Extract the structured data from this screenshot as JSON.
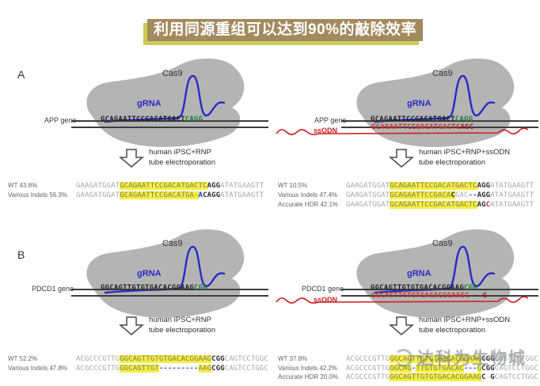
{
  "title": {
    "text": "利用同源重组可以达到90%的敲除效率",
    "bg_color": "#a3895e",
    "accent_color": "#c9cc55"
  },
  "watermark": {
    "text": "达科为生物城",
    "logo": "ring-logo-icon"
  },
  "colors": {
    "highlight_yellow": "#f4ee44",
    "grna_blue": "#2a2ac8",
    "pam_green": "#1e7d32",
    "ssodn_red": "#cc2020",
    "blob_gray": "#b4b4b4"
  },
  "panels": [
    {
      "section_label": "A",
      "cas9_label": "Cas9",
      "grna_label": "gRNA",
      "gene_label": "APP gene",
      "diagram_seq": [
        {
          "t": "GCAGAATTCCGACATGACT",
          "c": "k"
        },
        {
          "t": "CAGG",
          "c": "g"
        }
      ],
      "caption_line1": "human iPSC+RNP",
      "caption_line2": "tube electroporation",
      "results": [
        {
          "label": "WT 43.8%",
          "seq": [
            {
              "t": "GAAGATGGAT",
              "c": "p"
            },
            {
              "t": "GCAGAATTCCGACATGACTC",
              "c": "h"
            },
            {
              "t": "AGG",
              "c": "b"
            },
            {
              "t": "ATATGAAGTT",
              "c": "p"
            }
          ]
        },
        {
          "label": "Various Indels 56.3%",
          "seq": [
            {
              "t": "GAAGATGGAT",
              "c": "p"
            },
            {
              "t": "GCAGAATTCCGACATGA-",
              "c": "h"
            },
            {
              "t": "A",
              "c": "bb"
            },
            {
              "t": "CAGG",
              "c": "b"
            },
            {
              "t": "ATATGAAGTT",
              "c": "p"
            }
          ]
        }
      ]
    },
    {
      "section_label": "",
      "cas9_label": "Cas9",
      "grna_label": "gRNA",
      "gene_label": "APP gene",
      "diagram_seq": [
        {
          "t": "GCAGAATTCCGACATGACT",
          "c": "k"
        },
        {
          "t": "CAGG",
          "c": "g"
        }
      ],
      "ssodn": {
        "label": "ssODN",
        "seq": [
          {
            "t": "GCAGAATTCCGACATGACTC",
            "c": "r"
          },
          {
            "t": "AGC",
            "c": "rb"
          }
        ]
      },
      "caption_line1": "human iPSC+RNP+ssODN",
      "caption_line2": "tube electroporation",
      "results": [
        {
          "label": "WT 10.5%",
          "seq": [
            {
              "t": "GAAGATGGAT",
              "c": "p"
            },
            {
              "t": "GCAGAATTCCGACATGACTC",
              "c": "h"
            },
            {
              "t": "AGG",
              "c": "b"
            },
            {
              "t": "ATATGAAGTT",
              "c": "p"
            }
          ]
        },
        {
          "label": "Various Indels 47.4%",
          "seq": [
            {
              "t": "GAAGATGGAT",
              "c": "p"
            },
            {
              "t": "GCAGAATTCCGACA",
              "c": "h"
            },
            {
              "t": "C",
              "c": "hb"
            },
            {
              "t": "GAC",
              "c": "p"
            },
            {
              "t": "--",
              "c": "d"
            },
            {
              "t": "AGG",
              "c": "b"
            },
            {
              "t": "ATATGAAGTT",
              "c": "p"
            }
          ]
        },
        {
          "label": "Accurate HDR 42.1%",
          "seq": [
            {
              "t": "GAAGATGGAT",
              "c": "p"
            },
            {
              "t": "GCAGAATTCCGACATGACTC",
              "c": "h"
            },
            {
              "t": "AG",
              "c": "b"
            },
            {
              "t": "C",
              "c": "br"
            },
            {
              "t": "ATATGAAGTT",
              "c": "p"
            }
          ]
        }
      ]
    },
    {
      "section_label": "B",
      "cas9_label": "Cas9",
      "grna_label": "gRNA",
      "gene_label": "PDCD1 gene",
      "diagram_seq": [
        {
          "t": "GGCAGTTGTGTGACACGGAAG",
          "c": "k"
        },
        {
          "t": "CGG",
          "c": "g"
        }
      ],
      "caption_line1": "human iPSC+RNP",
      "caption_line2": "tube electroporation",
      "results": [
        {
          "label": "WT 52.2%",
          "seq": [
            {
              "t": "ACGCCCGTTG",
              "c": "p"
            },
            {
              "t": "GGCAGTTGTGTGACACGGAAG",
              "c": "h"
            },
            {
              "t": "CGG",
              "c": "b"
            },
            {
              "t": "CAGTCCTGGC",
              "c": "p"
            }
          ]
        },
        {
          "label": "Various Indels 47.8%",
          "seq": [
            {
              "t": "ACGCCCGTTG",
              "c": "p"
            },
            {
              "t": "GGCAGTTGT",
              "c": "h"
            },
            {
              "t": "---------",
              "c": "d"
            },
            {
              "t": "AAG",
              "c": "h"
            },
            {
              "t": "CGG",
              "c": "b"
            },
            {
              "t": "CAGTCCTGGC",
              "c": "p"
            }
          ]
        }
      ]
    },
    {
      "section_label": "",
      "cas9_label": "Cas9",
      "grna_label": "gRNA",
      "gene_label": "PDCD1 gene",
      "diagram_seq": [
        {
          "t": "GGCAGTTGTGTGACACGGAAG",
          "c": "k"
        },
        {
          "t": "CGG",
          "c": "g"
        }
      ],
      "ssodn": {
        "label": "ssODN",
        "seq": [
          {
            "t": "GGCAGTTGTGTGACACGGAAGC",
            "c": "r"
          },
          {
            "t": " - ",
            "c": "rb"
          },
          {
            "t": "G",
            "c": "rb"
          }
        ]
      },
      "caption_line1": "human iPSC+RNP+ssODN",
      "caption_line2": "tube electroporation",
      "results": [
        {
          "label": "WT 37.8%",
          "seq": [
            {
              "t": "ACGCCCGTTG",
              "c": "p"
            },
            {
              "t": "GGCAGTTGTGTGACACGGAAG",
              "c": "h"
            },
            {
              "t": "CGG",
              "c": "b"
            },
            {
              "t": "CAGTCCTGGC",
              "c": "p"
            }
          ]
        },
        {
          "label": "Various Indels 42.2%",
          "seq": [
            {
              "t": "ACGCCCGTTG",
              "c": "p"
            },
            {
              "t": "GGCAG",
              "c": "h"
            },
            {
              "t": "-",
              "c": "d"
            },
            {
              "t": "TTGTGTGACAC",
              "c": "h"
            },
            {
              "t": "---",
              "c": "d"
            },
            {
              "t": "G",
              "c": "h"
            },
            {
              "t": "CGG",
              "c": "b"
            },
            {
              "t": "CAGTCCTGGC",
              "c": "p"
            }
          ]
        },
        {
          "label": "Accurate HDR 20.0%",
          "seq": [
            {
              "t": "ACGCCCGTTG",
              "c": "p"
            },
            {
              "t": "GGCAGTTGTGTGACACGGAAG",
              "c": "h"
            },
            {
              "t": "C",
              "c": "b"
            },
            {
              "t": "-",
              "c": "p"
            },
            {
              "t": "G",
              "c": "b"
            },
            {
              "t": "CAGTCCTGGC",
              "c": "p"
            }
          ]
        }
      ]
    }
  ]
}
